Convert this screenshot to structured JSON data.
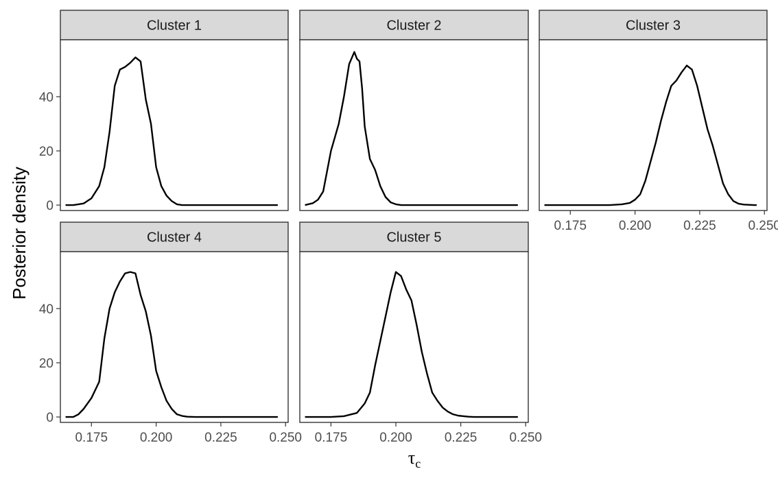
{
  "chart_data": {
    "type": "line",
    "facet_layout": "wrap",
    "xlabel": "τ",
    "xlabel_subscript": "c",
    "ylabel": "Posterior density",
    "xlim": [
      0.163,
      0.251
    ],
    "ylim": [
      -2,
      61
    ],
    "x_ticks": [
      0.175,
      0.2,
      0.225,
      0.25
    ],
    "x_tick_labels": [
      "0.175",
      "0.200",
      "0.225",
      "0.250"
    ],
    "y_ticks": [
      0,
      20,
      40
    ],
    "y_tick_labels": [
      "0",
      "20",
      "40"
    ],
    "grid": false,
    "series": [
      {
        "name": "Cluster 1",
        "x": [
          0.165,
          0.168,
          0.17,
          0.172,
          0.175,
          0.178,
          0.18,
          0.182,
          0.184,
          0.186,
          0.188,
          0.19,
          0.192,
          0.194,
          0.196,
          0.198,
          0.2,
          0.202,
          0.204,
          0.206,
          0.208,
          0.21,
          0.212,
          0.215,
          0.22,
          0.23,
          0.24,
          0.247
        ],
        "y": [
          0,
          0,
          0.3,
          0.6,
          2.5,
          7,
          14,
          27,
          44,
          50,
          51,
          52.5,
          54.5,
          53,
          39,
          30,
          14,
          7,
          3.5,
          1.5,
          0.3,
          0,
          0,
          0,
          0,
          0,
          0,
          0
        ]
      },
      {
        "name": "Cluster 2",
        "x": [
          0.165,
          0.168,
          0.17,
          0.172,
          0.175,
          0.178,
          0.18,
          0.182,
          0.184,
          0.185,
          0.186,
          0.187,
          0.188,
          0.19,
          0.192,
          0.194,
          0.196,
          0.198,
          0.2,
          0.202,
          0.204,
          0.206,
          0.208,
          0.21,
          0.212,
          0.215,
          0.22,
          0.23,
          0.24,
          0.247
        ],
        "y": [
          0,
          0.7,
          2,
          5,
          20,
          30,
          40,
          52,
          56.5,
          54,
          53,
          43,
          29,
          17,
          13,
          7,
          3,
          1,
          0.3,
          0,
          0,
          0,
          0,
          0,
          0,
          0,
          0,
          0,
          0,
          0
        ]
      },
      {
        "name": "Cluster 3",
        "x": [
          0.165,
          0.17,
          0.18,
          0.19,
          0.195,
          0.198,
          0.2,
          0.202,
          0.204,
          0.206,
          0.208,
          0.21,
          0.212,
          0.214,
          0.216,
          0.218,
          0.22,
          0.222,
          0.224,
          0.226,
          0.228,
          0.23,
          0.232,
          0.234,
          0.236,
          0.238,
          0.24,
          0.242,
          0.244,
          0.246,
          0.247
        ],
        "y": [
          0,
          0,
          0,
          0,
          0.3,
          0.8,
          2,
          4,
          9,
          16,
          23,
          31,
          38,
          44,
          46,
          49,
          51.5,
          50,
          44,
          36,
          28,
          22,
          15,
          8,
          4,
          1.5,
          0.5,
          0.2,
          0.1,
          0,
          0
        ]
      },
      {
        "name": "Cluster 4",
        "x": [
          0.165,
          0.168,
          0.17,
          0.172,
          0.175,
          0.178,
          0.18,
          0.182,
          0.184,
          0.186,
          0.188,
          0.19,
          0.192,
          0.194,
          0.196,
          0.198,
          0.2,
          0.202,
          0.204,
          0.206,
          0.208,
          0.21,
          0.212,
          0.215,
          0.22,
          0.23,
          0.24,
          0.247
        ],
        "y": [
          0,
          0,
          1,
          3,
          7,
          13,
          29,
          40,
          46,
          50,
          53,
          53.5,
          53,
          45,
          39,
          30,
          17,
          11,
          6,
          3,
          1,
          0.4,
          0.1,
          0,
          0,
          0,
          0,
          0
        ]
      },
      {
        "name": "Cluster 5",
        "x": [
          0.165,
          0.17,
          0.175,
          0.18,
          0.185,
          0.188,
          0.19,
          0.192,
          0.194,
          0.196,
          0.198,
          0.2,
          0.202,
          0.204,
          0.206,
          0.208,
          0.21,
          0.212,
          0.214,
          0.216,
          0.218,
          0.22,
          0.222,
          0.224,
          0.226,
          0.228,
          0.23,
          0.235,
          0.24,
          0.247
        ],
        "y": [
          0,
          0,
          0,
          0.3,
          1.5,
          5,
          9,
          19,
          28,
          37,
          46,
          53.5,
          52,
          47,
          43,
          34,
          24,
          16,
          9,
          6,
          3.5,
          2,
          1,
          0.5,
          0.3,
          0.1,
          0,
          0,
          0,
          0
        ]
      }
    ]
  }
}
